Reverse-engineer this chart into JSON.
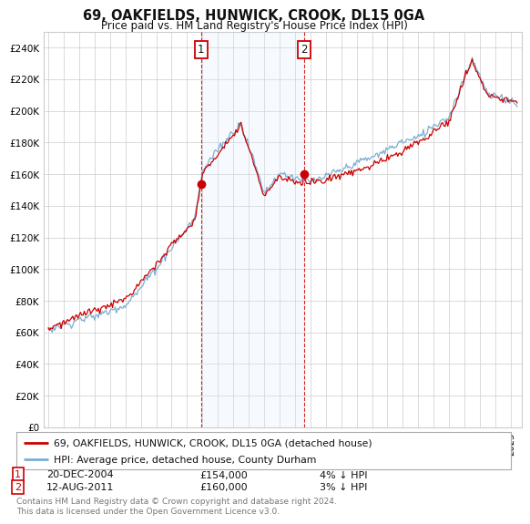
{
  "title": "69, OAKFIELDS, HUNWICK, CROOK, DL15 0GA",
  "subtitle": "Price paid vs. HM Land Registry's House Price Index (HPI)",
  "ylim": [
    0,
    250000
  ],
  "yticks": [
    0,
    20000,
    40000,
    60000,
    80000,
    100000,
    120000,
    140000,
    160000,
    180000,
    200000,
    220000,
    240000
  ],
  "ytick_labels": [
    "£0",
    "£20K",
    "£40K",
    "£60K",
    "£80K",
    "£100K",
    "£120K",
    "£140K",
    "£160K",
    "£180K",
    "£200K",
    "£220K",
    "£240K"
  ],
  "background_color": "#ffffff",
  "plot_bg_color": "#ffffff",
  "grid_color": "#cccccc",
  "sale1_year": 2004,
  "sale1_month": 12,
  "sale1_price": 154000,
  "sale1_date_str": "20-DEC-2004",
  "sale1_pct": "4% ↓ HPI",
  "sale2_year": 2011,
  "sale2_month": 8,
  "sale2_price": 160000,
  "sale2_date_str": "12-AUG-2011",
  "sale2_pct": "3% ↓ HPI",
  "legend_line1": "69, OAKFIELDS, HUNWICK, CROOK, DL15 0GA (detached house)",
  "legend_line2": "HPI: Average price, detached house, County Durham",
  "footer": "Contains HM Land Registry data © Crown copyright and database right 2024.\nThis data is licensed under the Open Government Licence v3.0.",
  "line_color_red": "#cc0000",
  "line_color_blue": "#7bafd4",
  "vline_color": "#cc0000",
  "shading_color": "#ddeeff",
  "box_color": "#cc0000",
  "start_year": 1995,
  "start_month": 1,
  "end_year": 2025,
  "end_month": 6
}
